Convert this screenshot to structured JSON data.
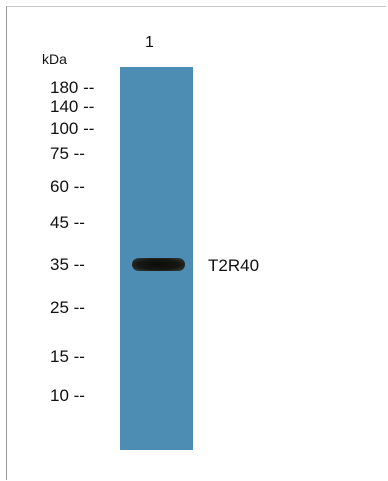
{
  "lane_label": "1",
  "unit_label": "kDa",
  "markers": [
    "180 --",
    "140 --",
    "100 --",
    "75 --",
    "60 --",
    "45 --",
    "35 --",
    "25 --",
    "15 --",
    "10 --"
  ],
  "band_label": "T2R40",
  "colors": {
    "lane": "#4d8cb3",
    "band": "#141410",
    "text": "#111111"
  }
}
